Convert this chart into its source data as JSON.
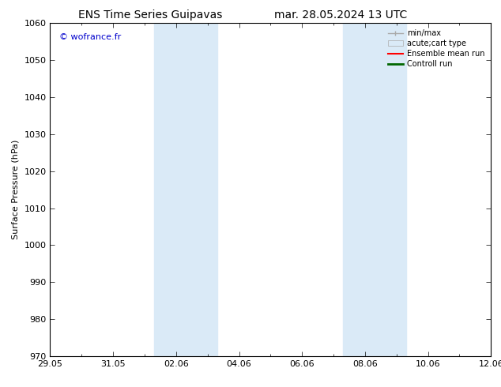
{
  "title_left": "ENS Time Series Guipavas",
  "title_right": "mar. 28.05.2024 13 UTC",
  "ylabel": "Surface Pressure (hPa)",
  "ylim": [
    970,
    1060
  ],
  "yticks": [
    970,
    980,
    990,
    1000,
    1010,
    1020,
    1030,
    1040,
    1050,
    1060
  ],
  "xtick_labels": [
    "29.05",
    "31.05",
    "02.06",
    "04.06",
    "06.06",
    "08.06",
    "10.06",
    "12.06"
  ],
  "xtick_positions": [
    0,
    2,
    4,
    6,
    8,
    10,
    12,
    14
  ],
  "x_start": 0,
  "x_end": 14,
  "shaded_bands": [
    {
      "x_start": 3.3,
      "x_end": 5.3
    },
    {
      "x_start": 9.3,
      "x_end": 11.3
    }
  ],
  "shaded_color": "#daeaf7",
  "watermark_text": "© wofrance.fr",
  "watermark_color": "#0000cc",
  "background_color": "#ffffff",
  "legend_entries": [
    {
      "label": "min/max",
      "color": "#aaaaaa",
      "lw": 1
    },
    {
      "label": "acute;cart type",
      "color": "#ccddee",
      "lw": 6
    },
    {
      "label": "Ensemble mean run",
      "color": "#ff0000",
      "lw": 1.5
    },
    {
      "label": "Controll run",
      "color": "#006600",
      "lw": 2
    }
  ],
  "title_fontsize": 10,
  "tick_label_fontsize": 8,
  "ylabel_fontsize": 8,
  "legend_fontsize": 7
}
